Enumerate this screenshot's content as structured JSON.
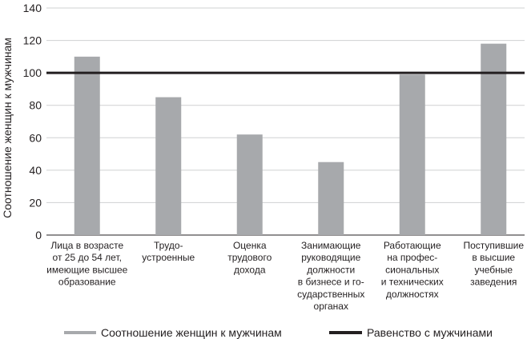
{
  "chart_data": {
    "type": "bar",
    "ylabel": "Соотношение женщин к мужчинам",
    "ylim": [
      0,
      140
    ],
    "yticks": [
      0,
      20,
      40,
      60,
      80,
      100,
      120,
      140
    ],
    "grid": true,
    "categories": [
      [
        "Лица в возрасте",
        "от 25 до 54 лет,",
        "имеющие высшее",
        "образование"
      ],
      [
        "Трудо-",
        "устроенные"
      ],
      [
        "Оценка",
        "трудового",
        "дохода"
      ],
      [
        "Занимающие",
        "руководящие",
        "должности",
        "в бизнесе и го-",
        "сударственных",
        "органах"
      ],
      [
        "Работающие",
        "на профес-",
        "сиональных",
        "и технических",
        "должностях"
      ],
      [
        "Поступившие",
        "в высшие",
        "учебные",
        "заведения"
      ]
    ],
    "series": [
      {
        "name": "Соотношение женщин к мужчинам",
        "type": "bar",
        "values": [
          110,
          85,
          62,
          45,
          99,
          118
        ]
      },
      {
        "name": "Равенство с мужчинами",
        "type": "line",
        "value": 100
      }
    ],
    "legend_position": "bottom",
    "colors": {
      "bar": "#a7a9ac",
      "line": "#231f20",
      "grid": "#cfd0d2",
      "text": "#231f20"
    }
  }
}
